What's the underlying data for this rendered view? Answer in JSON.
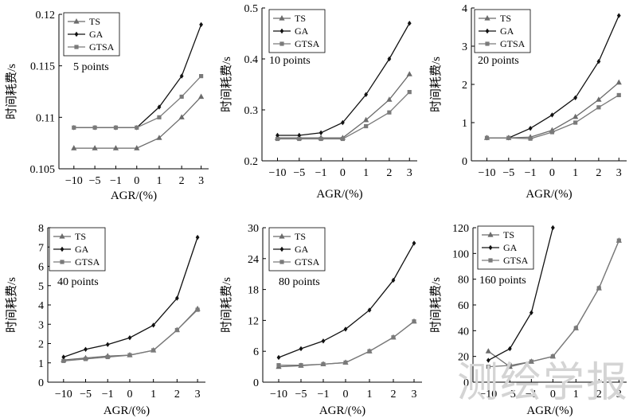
{
  "watermark": "测绘学报",
  "legend_labels": [
    "TS",
    "GA",
    "GTSA"
  ],
  "series_colors": {
    "TS": "#6b6b6b",
    "GA": "#111111",
    "GTSA": "#7a7a7a"
  },
  "chart_data": [
    {
      "type": "line",
      "title": "5 points",
      "xlabel": "AGR/(%)",
      "ylabel": "时间耗费/s",
      "categories": [
        "−10",
        "−5",
        "−1",
        "0",
        "1",
        "2",
        "3"
      ],
      "ylim": [
        0.105,
        0.12
      ],
      "yticks": [
        0.105,
        0.11,
        0.115,
        0.12
      ],
      "ytick_labels": [
        "0.105",
        "0.11",
        "0.115",
        "0.12"
      ],
      "series": [
        {
          "name": "TS",
          "values": [
            0.107,
            0.107,
            0.107,
            0.107,
            0.108,
            0.11,
            0.112
          ]
        },
        {
          "name": "GA",
          "values": [
            0.109,
            0.109,
            0.109,
            0.109,
            0.111,
            0.114,
            0.119
          ]
        },
        {
          "name": "GTSA",
          "values": [
            0.109,
            0.109,
            0.109,
            0.109,
            0.11,
            0.112,
            0.114
          ]
        }
      ]
    },
    {
      "type": "line",
      "title": "10 points",
      "xlabel": "AGR/(%)",
      "ylabel": "时间耗费/s",
      "categories": [
        "−10",
        "−5",
        "−1",
        "0",
        "1",
        "2",
        "3"
      ],
      "ylim": [
        0.2,
        0.5
      ],
      "yticks": [
        0.2,
        0.3,
        0.4,
        0.5
      ],
      "ytick_labels": [
        "0.2",
        "0.3",
        "0.4",
        "0.5"
      ],
      "series": [
        {
          "name": "TS",
          "values": [
            0.245,
            0.245,
            0.245,
            0.245,
            0.28,
            0.32,
            0.37
          ]
        },
        {
          "name": "GA",
          "values": [
            0.25,
            0.25,
            0.255,
            0.275,
            0.33,
            0.4,
            0.47
          ]
        },
        {
          "name": "GTSA",
          "values": [
            0.243,
            0.243,
            0.243,
            0.243,
            0.268,
            0.295,
            0.335
          ]
        }
      ]
    },
    {
      "type": "line",
      "title": "20 points",
      "xlabel": "AGR/(%)",
      "ylabel": "时间耗费/s",
      "categories": [
        "−10",
        "−5",
        "−1",
        "0",
        "1",
        "2",
        "3"
      ],
      "ylim": [
        0,
        4
      ],
      "yticks": [
        0,
        1,
        2,
        3,
        4
      ],
      "ytick_labels": [
        "0",
        "1",
        "2",
        "3",
        "4"
      ],
      "series": [
        {
          "name": "TS",
          "values": [
            0.6,
            0.6,
            0.62,
            0.8,
            1.15,
            1.6,
            2.05
          ]
        },
        {
          "name": "GA",
          "values": [
            0.6,
            0.6,
            0.85,
            1.2,
            1.65,
            2.6,
            3.8
          ]
        },
        {
          "name": "GTSA",
          "values": [
            0.6,
            0.6,
            0.58,
            0.75,
            1.0,
            1.4,
            1.72
          ]
        }
      ]
    },
    {
      "type": "line",
      "title": "40 points",
      "xlabel": "AGR/(%)",
      "ylabel": "时间耗费/s",
      "categories": [
        "−10",
        "−5",
        "−1",
        "0",
        "1",
        "2",
        "3"
      ],
      "ylim": [
        0,
        8
      ],
      "yticks": [
        0,
        1,
        2,
        3,
        4,
        5,
        6,
        7,
        8
      ],
      "ytick_labels": [
        "0",
        "1",
        "2",
        "3",
        "4",
        "5",
        "6",
        "7",
        "8"
      ],
      "series": [
        {
          "name": "TS",
          "values": [
            1.15,
            1.25,
            1.35,
            1.4,
            1.65,
            2.7,
            3.8
          ]
        },
        {
          "name": "GA",
          "values": [
            1.3,
            1.7,
            1.95,
            2.3,
            2.95,
            4.35,
            7.5
          ]
        },
        {
          "name": "GTSA",
          "values": [
            1.1,
            1.2,
            1.3,
            1.4,
            1.65,
            2.7,
            3.75
          ]
        }
      ]
    },
    {
      "type": "line",
      "title": "80 points",
      "xlabel": "AGR/(%)",
      "ylabel": "时间耗费/s",
      "categories": [
        "−10",
        "−5",
        "−1",
        "0",
        "1",
        "2",
        "3"
      ],
      "ylim": [
        0,
        30
      ],
      "yticks": [
        0,
        6,
        12,
        18,
        24,
        30
      ],
      "ytick_labels": [
        "0",
        "6",
        "12",
        "18",
        "24",
        "30"
      ],
      "series": [
        {
          "name": "TS",
          "values": [
            3.0,
            3.2,
            3.5,
            3.8,
            6.0,
            8.7,
            11.8
          ]
        },
        {
          "name": "GA",
          "values": [
            4.8,
            6.5,
            8.0,
            10.3,
            14.0,
            19.8,
            27.0
          ]
        },
        {
          "name": "GTSA",
          "values": [
            3.3,
            3.3,
            3.5,
            3.8,
            6.0,
            8.7,
            11.8
          ]
        }
      ]
    },
    {
      "type": "line",
      "title": "160 points",
      "xlabel": "AGR/(%)",
      "ylabel": "时间耗费/s",
      "categories": [
        "−10",
        "−5",
        "−1",
        "0",
        "1",
        "2",
        "3"
      ],
      "ylim": [
        0,
        120
      ],
      "yticks": [
        0,
        20,
        40,
        60,
        80,
        100,
        120
      ],
      "ytick_labels": [
        "0",
        "20",
        "40",
        "60",
        "80",
        "100",
        "120"
      ],
      "series": [
        {
          "name": "TS",
          "values": [
            24,
            12,
            16,
            20,
            42,
            73,
            110
          ]
        },
        {
          "name": "GA",
          "values": [
            17,
            26,
            54,
            120,
            null,
            null,
            null
          ]
        },
        {
          "name": "GTSA",
          "values": [
            12,
            13,
            16,
            20,
            42,
            73,
            110
          ]
        }
      ]
    }
  ]
}
